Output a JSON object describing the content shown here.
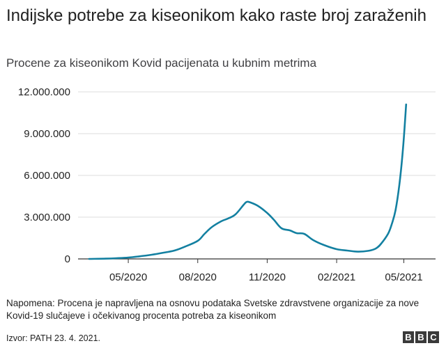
{
  "header": {
    "title": "Indijske potrebe za kiseonikom kako raste broj zaraženih",
    "subtitle": "Procene za kiseonikom Kovid pacijenata u kubnim metrima"
  },
  "chart_data": {
    "type": "line",
    "title": "Indijske potrebe za kiseonikom kako raste broj zaraženih",
    "subtitle": "Procene za kiseonikom Kovid pacijenata u kubnim metrima",
    "xlabel": "",
    "ylabel": "",
    "ylim": [
      0,
      12000000
    ],
    "yticks": [
      0,
      3000000,
      6000000,
      9000000,
      12000000
    ],
    "ytick_labels": [
      "0",
      "3.000.000",
      "6.000.000",
      "9.000.000",
      "12.000.000"
    ],
    "xticks": [
      "2020-05-01",
      "2020-08-01",
      "2020-11-01",
      "2021-02-01",
      "2021-05-01"
    ],
    "xtick_labels": [
      "05/2020",
      "08/2020",
      "11/2020",
      "02/2021",
      "05/2021"
    ],
    "xlim": [
      "2020-03-01",
      "2021-05-31"
    ],
    "grid": true,
    "color": "#1380a1",
    "series": [
      {
        "x": [
          "2020-03-10",
          "2020-04-01",
          "2020-04-15",
          "2020-05-01",
          "2020-05-15",
          "2020-06-01",
          "2020-06-15",
          "2020-07-01",
          "2020-07-15",
          "2020-08-01",
          "2020-08-10",
          "2020-08-20",
          "2020-09-01",
          "2020-09-10",
          "2020-09-20",
          "2020-10-01",
          "2020-10-05",
          "2020-10-10",
          "2020-10-20",
          "2020-11-01",
          "2020-11-10",
          "2020-11-20",
          "2020-12-01",
          "2020-12-10",
          "2020-12-20",
          "2021-01-01",
          "2021-01-15",
          "2021-02-01",
          "2021-02-15",
          "2021-03-01",
          "2021-03-15",
          "2021-03-25",
          "2021-04-01",
          "2021-04-10",
          "2021-04-15",
          "2021-04-20",
          "2021-04-25",
          "2021-04-30",
          "2021-05-04"
        ],
        "y": [
          0,
          20000,
          50000,
          100000,
          180000,
          300000,
          430000,
          600000,
          880000,
          1300000,
          1800000,
          2300000,
          2700000,
          2900000,
          3200000,
          3900000,
          4100000,
          4050000,
          3800000,
          3300000,
          2800000,
          2200000,
          2050000,
          1850000,
          1800000,
          1350000,
          1000000,
          700000,
          600000,
          520000,
          580000,
          750000,
          1100000,
          1800000,
          2500000,
          3500000,
          5300000,
          8000000,
          11100000
        ]
      }
    ]
  },
  "footer": {
    "note": "Napomena: Procena je napravljena na osnovu podataka Svetske zdravstvene organizacije za nove Kovid-19 slučajeve i očekivanog procenta potreba za kiseonikom",
    "source": "Izvor: PATH 23. 4. 2021.",
    "logo_letters": [
      "B",
      "B",
      "C"
    ]
  }
}
